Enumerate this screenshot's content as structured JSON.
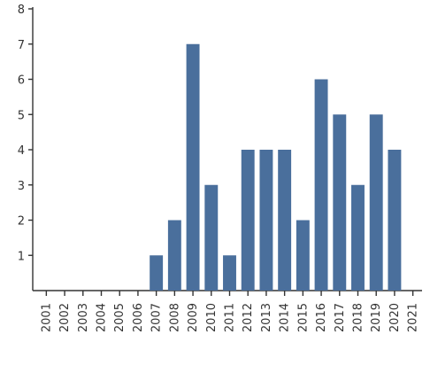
{
  "chart_data": {
    "type": "bar",
    "categories": [
      "2001",
      "2002",
      "2003",
      "2004",
      "2005",
      "2006",
      "2007",
      "2008",
      "2009",
      "2010",
      "2011",
      "2012",
      "2013",
      "2014",
      "2015",
      "2016",
      "2017",
      "2018",
      "2019",
      "2020",
      "2021"
    ],
    "values": [
      0,
      0,
      0,
      0,
      0,
      0,
      1,
      2,
      7,
      3,
      1,
      4,
      4,
      4,
      2,
      6,
      5,
      3,
      5,
      4,
      0
    ],
    "title": "",
    "xlabel": "",
    "ylabel": "",
    "ylim": [
      0,
      8
    ],
    "yticks": [
      "1",
      "2",
      "3",
      "4",
      "5",
      "6",
      "7",
      "8"
    ],
    "grid": false,
    "bar_color": "#4a6f9c"
  }
}
